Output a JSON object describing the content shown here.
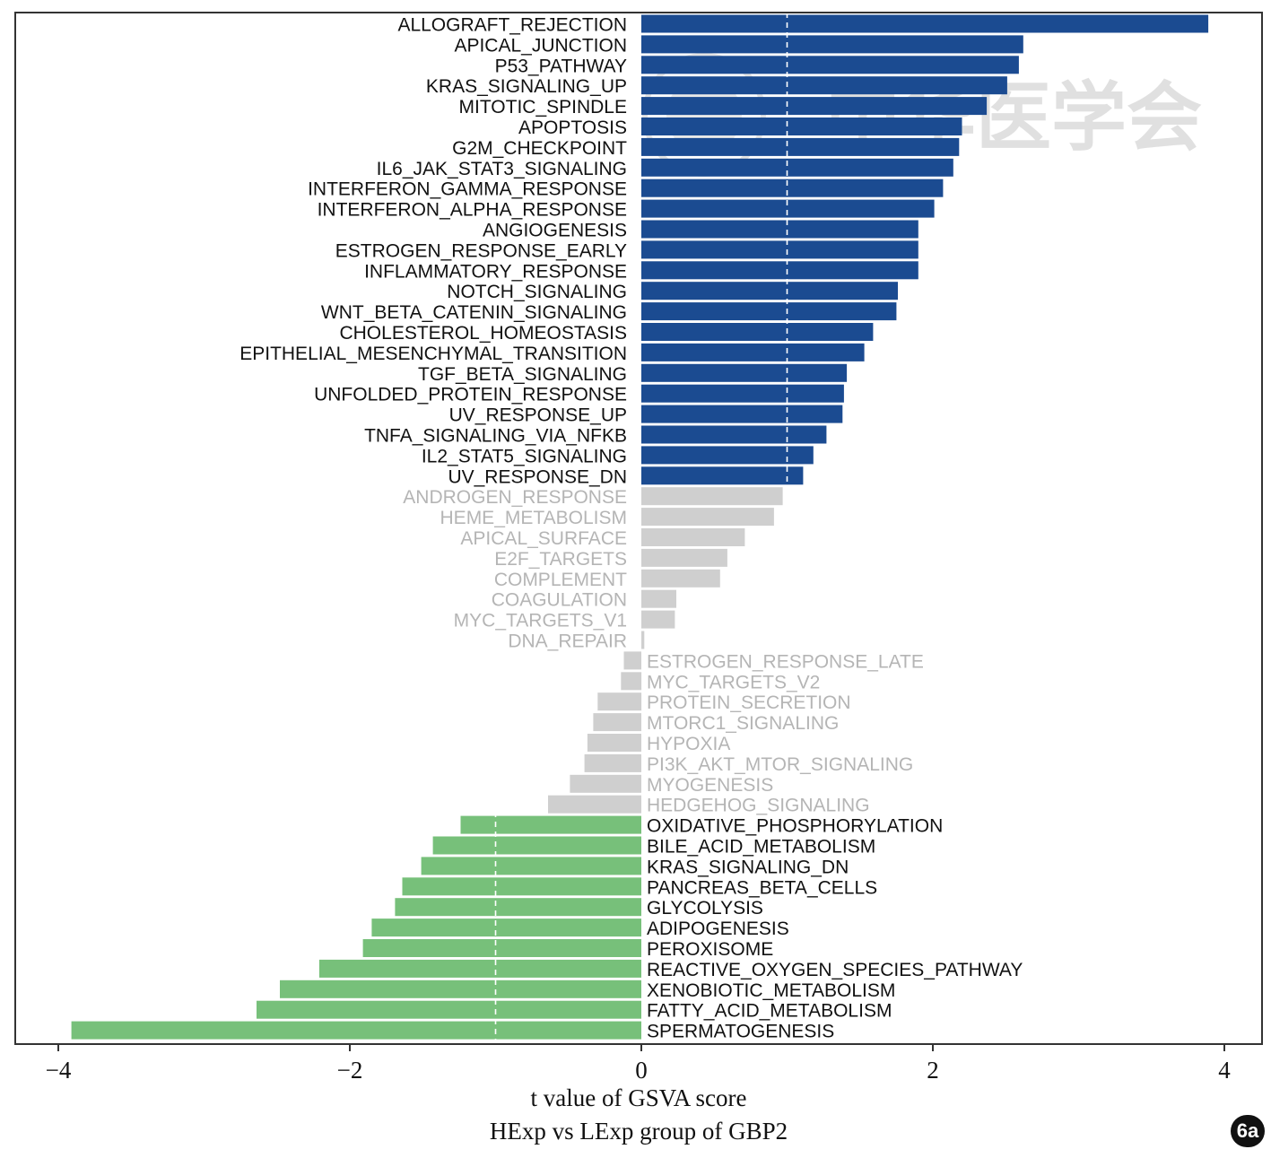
{
  "panel_label": "6a",
  "watermark": "中华医学会",
  "colors": {
    "up": "#1b4b91",
    "down": "#77c07a",
    "ns_bar": "#cfcfcf",
    "ns_text": "#b5b5b5",
    "sig_text": "#111111",
    "threshold_line": "#ffffff",
    "frame": "#333333"
  },
  "chart_data": {
    "type": "bar",
    "orientation": "horizontal",
    "xlabel": "t value of GSVA score",
    "subtitle": "HExp vs LExp group of GBP2",
    "xlim": [
      -4.3,
      4.3
    ],
    "xticks": [
      -4,
      -2,
      0,
      2,
      4
    ],
    "xtick_labels": [
      "−4",
      "−2",
      "0",
      "2",
      "4"
    ],
    "threshold_lines": [
      -1,
      1
    ],
    "groups": [
      "up",
      "ns",
      "down"
    ],
    "categories": [
      "ALLOGRAFT_REJECTION",
      "APICAL_JUNCTION",
      "P53_PATHWAY",
      "KRAS_SIGNALING_UP",
      "MITOTIC_SPINDLE",
      "APOPTOSIS",
      "G2M_CHECKPOINT",
      "IL6_JAK_STAT3_SIGNALING",
      "INTERFERON_GAMMA_RESPONSE",
      "INTERFERON_ALPHA_RESPONSE",
      "ANGIOGENESIS",
      "ESTROGEN_RESPONSE_EARLY",
      "INFLAMMATORY_RESPONSE",
      "NOTCH_SIGNALING",
      "WNT_BETA_CATENIN_SIGNALING",
      "CHOLESTEROL_HOMEOSTASIS",
      "EPITHELIAL_MESENCHYMAL_TRANSITION",
      "TGF_BETA_SIGNALING",
      "UNFOLDED_PROTEIN_RESPONSE",
      "UV_RESPONSE_UP",
      "TNFA_SIGNALING_VIA_NFKB",
      "IL2_STAT5_SIGNALING",
      "UV_RESPONSE_DN",
      "ANDROGEN_RESPONSE",
      "HEME_METABOLISM",
      "APICAL_SURFACE",
      "E2F_TARGETS",
      "COMPLEMENT",
      "COAGULATION",
      "MYC_TARGETS_V1",
      "DNA_REPAIR",
      "ESTROGEN_RESPONSE_LATE",
      "MYC_TARGETS_V2",
      "PROTEIN_SECRETION",
      "MTORC1_SIGNALING",
      "HYPOXIA",
      "PI3K_AKT_MTOR_SIGNALING",
      "MYOGENESIS",
      "HEDGEHOG_SIGNALING",
      "OXIDATIVE_PHOSPHORYLATION",
      "BILE_ACID_METABOLISM",
      "KRAS_SIGNALING_DN",
      "PANCREAS_BETA_CELLS",
      "GLYCOLYSIS",
      "ADIPOGENESIS",
      "PEROXISOME",
      "REACTIVE_OXYGEN_SPECIES_PATHWAY",
      "XENOBIOTIC_METABOLISM",
      "FATTY_ACID_METABOLISM",
      "SPERMATOGENESIS"
    ],
    "values": [
      3.89,
      2.62,
      2.59,
      2.51,
      2.37,
      2.2,
      2.18,
      2.14,
      2.07,
      2.01,
      1.9,
      1.9,
      1.9,
      1.76,
      1.75,
      1.59,
      1.53,
      1.41,
      1.39,
      1.38,
      1.27,
      1.18,
      1.11,
      0.97,
      0.91,
      0.71,
      0.59,
      0.54,
      0.24,
      0.23,
      0.02,
      -0.12,
      -0.14,
      -0.3,
      -0.33,
      -0.37,
      -0.39,
      -0.49,
      -0.64,
      -1.24,
      -1.43,
      -1.51,
      -1.64,
      -1.69,
      -1.85,
      -1.91,
      -2.21,
      -2.48,
      -2.64,
      -3.91
    ],
    "group_of": [
      "up",
      "up",
      "up",
      "up",
      "up",
      "up",
      "up",
      "up",
      "up",
      "up",
      "up",
      "up",
      "up",
      "up",
      "up",
      "up",
      "up",
      "up",
      "up",
      "up",
      "up",
      "up",
      "up",
      "ns",
      "ns",
      "ns",
      "ns",
      "ns",
      "ns",
      "ns",
      "ns",
      "ns",
      "ns",
      "ns",
      "ns",
      "ns",
      "ns",
      "ns",
      "ns",
      "down",
      "down",
      "down",
      "down",
      "down",
      "down",
      "down",
      "down",
      "down",
      "down",
      "down"
    ]
  }
}
